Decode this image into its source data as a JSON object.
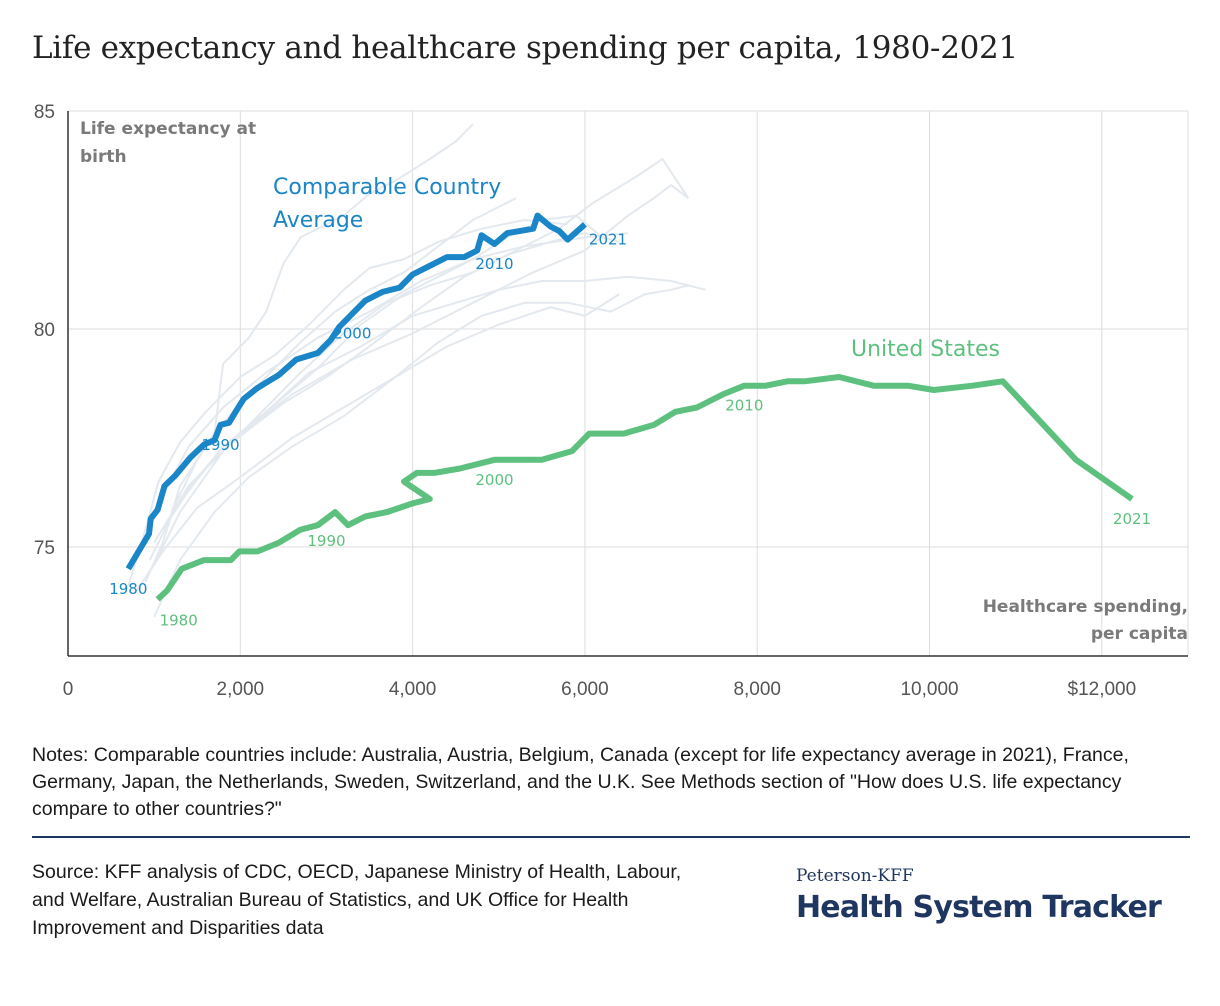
{
  "header": {
    "title": "Life expectancy and healthcare spending per capita, 1980-2021"
  },
  "colors": {
    "comparable": "#1a86c8",
    "us": "#5ec07f",
    "background_lines": "#e3e9ee",
    "grid": "#dddddd",
    "axis": "#333333",
    "axis_title": "#7a7a7a"
  },
  "chart_data": {
    "type": "line",
    "title": "Life expectancy and healthcare spending per capita, 1980-2021",
    "xlabel": "Healthcare spending, per capita",
    "ylabel": "Life expectancy at birth",
    "xlim": [
      0,
      13000
    ],
    "ylim": [
      72.5,
      85
    ],
    "x_ticks": [
      0,
      2000,
      4000,
      6000,
      8000,
      10000,
      12000
    ],
    "x_tick_labels": [
      "0",
      "2,000",
      "4,000",
      "6,000",
      "8,000",
      "10,000",
      "$12,000"
    ],
    "y_ticks": [
      75,
      80,
      85
    ],
    "y_tick_labels": [
      "75",
      "80",
      "85"
    ],
    "x_title_lines": [
      "Healthcare spending,",
      "per capita"
    ],
    "y_title_lines": [
      "Life expectancy at",
      "birth"
    ],
    "series": [
      {
        "name": "Comparable Country Average",
        "label_lines": [
          "Comparable Country",
          "Average"
        ],
        "color_key": "comparable",
        "points": [
          {
            "x": 700,
            "y": 74.5,
            "year": 1980
          },
          {
            "x": 820,
            "y": 74.9,
            "year": 1981
          },
          {
            "x": 940,
            "y": 75.3,
            "year": 1982
          },
          {
            "x": 960,
            "y": 75.65,
            "year": 1983
          },
          {
            "x": 1040,
            "y": 75.85,
            "year": 1984
          },
          {
            "x": 1120,
            "y": 76.4,
            "year": 1985
          },
          {
            "x": 1250,
            "y": 76.65,
            "year": 1986
          },
          {
            "x": 1420,
            "y": 77.05,
            "year": 1987
          },
          {
            "x": 1580,
            "y": 77.35,
            "year": 1988
          },
          {
            "x": 1700,
            "y": 77.45,
            "year": 1989
          },
          {
            "x": 1770,
            "y": 77.8,
            "year": 1990
          },
          {
            "x": 1870,
            "y": 77.85,
            "year": 1991
          },
          {
            "x": 1960,
            "y": 78.15,
            "year": 1992
          },
          {
            "x": 2040,
            "y": 78.4,
            "year": 1993
          },
          {
            "x": 2200,
            "y": 78.65,
            "year": 1994
          },
          {
            "x": 2450,
            "y": 78.95,
            "year": 1995
          },
          {
            "x": 2650,
            "y": 79.3,
            "year": 1996
          },
          {
            "x": 2900,
            "y": 79.45,
            "year": 1997
          },
          {
            "x": 3050,
            "y": 79.75,
            "year": 1998
          },
          {
            "x": 3150,
            "y": 80.05,
            "year": 1999
          },
          {
            "x": 3300,
            "y": 80.35,
            "year": 2000
          },
          {
            "x": 3450,
            "y": 80.65,
            "year": 2001
          },
          {
            "x": 3650,
            "y": 80.85,
            "year": 2002
          },
          {
            "x": 3850,
            "y": 80.95,
            "year": 2003
          },
          {
            "x": 4000,
            "y": 81.25,
            "year": 2004
          },
          {
            "x": 4200,
            "y": 81.45,
            "year": 2005
          },
          {
            "x": 4400,
            "y": 81.65,
            "year": 2006
          },
          {
            "x": 4600,
            "y": 81.65,
            "year": 2007
          },
          {
            "x": 4750,
            "y": 81.8,
            "year": 2008
          },
          {
            "x": 4800,
            "y": 82.15,
            "year": 2009
          },
          {
            "x": 4950,
            "y": 81.95,
            "year": 2010
          },
          {
            "x": 5100,
            "y": 82.2,
            "year": 2011
          },
          {
            "x": 5250,
            "y": 82.25,
            "year": 2012
          },
          {
            "x": 5400,
            "y": 82.3,
            "year": 2013
          },
          {
            "x": 5450,
            "y": 82.6,
            "year": 2014
          },
          {
            "x": 5600,
            "y": 82.35,
            "year": 2015
          },
          {
            "x": 5700,
            "y": 82.25,
            "year": 2016
          },
          {
            "x": 5800,
            "y": 82.05,
            "year": 2019
          },
          {
            "x": 6000,
            "y": 82.4,
            "year": 2021
          }
        ],
        "year_labels": [
          {
            "text": "1980",
            "x": 700,
            "y": 74.5,
            "anchor": "below"
          },
          {
            "text": "1990",
            "x": 1770,
            "y": 77.8,
            "anchor": "below"
          },
          {
            "text": "2000",
            "x": 3300,
            "y": 80.35,
            "anchor": "below"
          },
          {
            "text": "2010",
            "x": 4950,
            "y": 81.95,
            "anchor": "below"
          },
          {
            "text": "2021",
            "x": 6000,
            "y": 82.4,
            "anchor": "right"
          }
        ]
      },
      {
        "name": "United States",
        "label_lines": [
          "United States"
        ],
        "color_key": "us",
        "points": [
          {
            "x": 1040,
            "y": 73.8,
            "year": 1980
          },
          {
            "x": 1150,
            "y": 74.0,
            "year": 1981
          },
          {
            "x": 1320,
            "y": 74.5,
            "year": 1982
          },
          {
            "x": 1580,
            "y": 74.7,
            "year": 1983
          },
          {
            "x": 1890,
            "y": 74.7,
            "year": 1984
          },
          {
            "x": 1990,
            "y": 74.9,
            "year": 1985
          },
          {
            "x": 2200,
            "y": 74.9,
            "year": 1986
          },
          {
            "x": 2450,
            "y": 75.1,
            "year": 1987
          },
          {
            "x": 2700,
            "y": 75.4,
            "year": 1988
          },
          {
            "x": 2900,
            "y": 75.5,
            "year": 1989
          },
          {
            "x": 3100,
            "y": 75.8,
            "year": 1990
          },
          {
            "x": 3250,
            "y": 75.5,
            "year": 1991
          },
          {
            "x": 3450,
            "y": 75.7,
            "year": 1992
          },
          {
            "x": 3700,
            "y": 75.8,
            "year": 1993
          },
          {
            "x": 4000,
            "y": 76.0,
            "year": 1994
          },
          {
            "x": 4200,
            "y": 76.1,
            "year": 1995
          },
          {
            "x": 3900,
            "y": 76.5,
            "year": 1996
          },
          {
            "x": 4050,
            "y": 76.7,
            "year": 1997
          },
          {
            "x": 4250,
            "y": 76.7,
            "year": 1998
          },
          {
            "x": 4550,
            "y": 76.8,
            "year": 1999
          },
          {
            "x": 4950,
            "y": 77.0,
            "year": 2000
          },
          {
            "x": 5300,
            "y": 77.0,
            "year": 2001
          },
          {
            "x": 5500,
            "y": 77.0,
            "year": 2002
          },
          {
            "x": 5850,
            "y": 77.2,
            "year": 2003
          },
          {
            "x": 6050,
            "y": 77.6,
            "year": 2004
          },
          {
            "x": 6450,
            "y": 77.6,
            "year": 2005
          },
          {
            "x": 6800,
            "y": 77.8,
            "year": 2006
          },
          {
            "x": 7050,
            "y": 78.1,
            "year": 2007
          },
          {
            "x": 7300,
            "y": 78.2,
            "year": 2008
          },
          {
            "x": 7600,
            "y": 78.5,
            "year": 2009
          },
          {
            "x": 7850,
            "y": 78.7,
            "year": 2010
          },
          {
            "x": 8100,
            "y": 78.7,
            "year": 2011
          },
          {
            "x": 8350,
            "y": 78.8,
            "year": 2012
          },
          {
            "x": 8550,
            "y": 78.8,
            "year": 2013
          },
          {
            "x": 8950,
            "y": 78.9,
            "year": 2014
          },
          {
            "x": 9350,
            "y": 78.7,
            "year": 2015
          },
          {
            "x": 9750,
            "y": 78.7,
            "year": 2016
          },
          {
            "x": 10050,
            "y": 78.6,
            "year": 2017
          },
          {
            "x": 10500,
            "y": 78.7,
            "year": 2018
          },
          {
            "x": 10850,
            "y": 78.8,
            "year": 2019
          },
          {
            "x": 11700,
            "y": 77.0,
            "year": 2020
          },
          {
            "x": 12350,
            "y": 76.1,
            "year": 2021
          }
        ],
        "year_labels": [
          {
            "text": "1980",
            "x": 1040,
            "y": 73.8,
            "anchor": "below-right"
          },
          {
            "text": "1990",
            "x": 3000,
            "y": 75.6,
            "anchor": "below"
          },
          {
            "text": "2000",
            "x": 4950,
            "y": 77.0,
            "anchor": "below"
          },
          {
            "text": "2010",
            "x": 7850,
            "y": 78.7,
            "anchor": "below"
          },
          {
            "text": "2021",
            "x": 12350,
            "y": 76.1,
            "anchor": "below"
          }
        ]
      }
    ],
    "background_series": [
      [
        [
          900,
          74.2
        ],
        [
          1100,
          75.1
        ],
        [
          1300,
          76.4
        ],
        [
          1500,
          77.0
        ],
        [
          1700,
          77.6
        ],
        [
          2000,
          78.3
        ],
        [
          2300,
          78.9
        ],
        [
          2700,
          79.7
        ],
        [
          3100,
          80.4
        ],
        [
          3500,
          80.9
        ],
        [
          3900,
          81.3
        ],
        [
          4300,
          81.9
        ],
        [
          4700,
          82.5
        ],
        [
          5000,
          82.8
        ],
        [
          5200,
          83.0
        ]
      ],
      [
        [
          950,
          74.7
        ],
        [
          1250,
          75.9
        ],
        [
          1600,
          76.8
        ],
        [
          1950,
          77.5
        ],
        [
          2300,
          78.2
        ],
        [
          2700,
          79.0
        ],
        [
          3200,
          79.9
        ],
        [
          3700,
          80.6
        ],
        [
          4200,
          81.0
        ],
        [
          4700,
          81.3
        ],
        [
          5100,
          81.7
        ],
        [
          5600,
          82.0
        ],
        [
          6000,
          82.2
        ],
        [
          6400,
          82.0
        ]
      ],
      [
        [
          700,
          74.1
        ],
        [
          900,
          75.4
        ],
        [
          1050,
          76.5
        ],
        [
          1300,
          77.4
        ],
        [
          1600,
          78.1
        ],
        [
          2000,
          78.9
        ],
        [
          2400,
          79.4
        ],
        [
          2800,
          80.1
        ],
        [
          3200,
          80.9
        ],
        [
          3500,
          81.4
        ],
        [
          3900,
          81.6
        ],
        [
          4300,
          82.0
        ],
        [
          4800,
          82.3
        ],
        [
          5300,
          82.5
        ],
        [
          5800,
          82.4
        ]
      ],
      [
        [
          1200,
          75.8
        ],
        [
          1500,
          77.0
        ],
        [
          1700,
          77.6
        ],
        [
          1800,
          79.2
        ],
        [
          2100,
          79.8
        ],
        [
          2300,
          80.4
        ],
        [
          2500,
          81.5
        ],
        [
          2700,
          82.1
        ],
        [
          2900,
          82.3
        ],
        [
          3200,
          82.6
        ],
        [
          3500,
          83.1
        ],
        [
          3800,
          83.4
        ],
        [
          4200,
          83.9
        ],
        [
          4500,
          84.3
        ],
        [
          4700,
          84.7
        ]
      ],
      [
        [
          1000,
          73.4
        ],
        [
          1300,
          74.7
        ],
        [
          1700,
          75.8
        ],
        [
          2100,
          76.6
        ],
        [
          2600,
          77.3
        ],
        [
          3200,
          78.0
        ],
        [
          3800,
          78.9
        ],
        [
          4300,
          79.7
        ],
        [
          4800,
          80.3
        ],
        [
          5300,
          80.6
        ],
        [
          5800,
          80.6
        ],
        [
          6300,
          80.4
        ],
        [
          6700,
          80.8
        ],
        [
          7000,
          80.9
        ],
        [
          7200,
          81.0
        ]
      ],
      [
        [
          800,
          74.0
        ],
        [
          1100,
          74.9
        ],
        [
          1500,
          75.9
        ],
        [
          2000,
          76.6
        ],
        [
          2600,
          77.5
        ],
        [
          3200,
          78.2
        ],
        [
          3800,
          78.9
        ],
        [
          4400,
          79.6
        ],
        [
          5000,
          80.1
        ],
        [
          5600,
          80.5
        ],
        [
          6000,
          80.3
        ],
        [
          6400,
          80.8
        ]
      ],
      [
        [
          1000,
          74.6
        ],
        [
          1300,
          75.8
        ],
        [
          1800,
          77.2
        ],
        [
          2300,
          78.1
        ],
        [
          2800,
          79.0
        ],
        [
          3400,
          79.6
        ],
        [
          4000,
          80.3
        ],
        [
          4500,
          80.6
        ],
        [
          5000,
          80.9
        ],
        [
          5500,
          81.1
        ],
        [
          6000,
          81.1
        ],
        [
          6500,
          81.2
        ],
        [
          7000,
          81.1
        ],
        [
          7400,
          80.9
        ]
      ],
      [
        [
          850,
          74.9
        ],
        [
          1100,
          76.2
        ],
        [
          1400,
          77.3
        ],
        [
          1800,
          78.2
        ],
        [
          2300,
          79.0
        ],
        [
          2900,
          79.8
        ],
        [
          3500,
          80.4
        ],
        [
          4100,
          81.1
        ],
        [
          4700,
          81.6
        ],
        [
          5300,
          81.9
        ],
        [
          6000,
          82.1
        ],
        [
          6500,
          82.2
        ]
      ],
      [
        [
          1100,
          75.4
        ],
        [
          1500,
          76.6
        ],
        [
          2000,
          77.6
        ],
        [
          2600,
          78.5
        ],
        [
          3300,
          79.3
        ],
        [
          4000,
          79.9
        ],
        [
          4700,
          80.6
        ],
        [
          5400,
          81.3
        ],
        [
          6000,
          81.8
        ],
        [
          6500,
          82.6
        ],
        [
          6800,
          83.0
        ],
        [
          7000,
          83.3
        ],
        [
          7200,
          83.0
        ]
      ],
      [
        [
          1000,
          75.1
        ],
        [
          1400,
          76.4
        ],
        [
          1900,
          77.4
        ],
        [
          2500,
          78.3
        ],
        [
          3000,
          78.9
        ],
        [
          3500,
          79.6
        ],
        [
          4100,
          80.5
        ],
        [
          4600,
          81.2
        ],
        [
          5200,
          81.8
        ],
        [
          5700,
          82.3
        ],
        [
          6100,
          82.9
        ],
        [
          6600,
          83.5
        ],
        [
          6900,
          83.9
        ],
        [
          7200,
          83.0
        ]
      ],
      [
        [
          1300,
          76.1
        ],
        [
          1800,
          77.3
        ],
        [
          2300,
          78.1
        ],
        [
          2900,
          79.1
        ],
        [
          3400,
          80.1
        ],
        [
          3900,
          80.8
        ],
        [
          4300,
          81.2
        ],
        [
          4700,
          81.6
        ],
        [
          5100,
          82.1
        ],
        [
          5500,
          82.5
        ],
        [
          5900,
          82.6
        ],
        [
          6200,
          82.1
        ]
      ]
    ]
  },
  "notes": "Notes: Comparable countries include: Australia, Austria, Belgium, Canada (except for life expectancy average in 2021), France, Germany, Japan, the Netherlands, Sweden, Switzerland, and the U.K. See Methods section of \"How does U.S. life expectancy compare to other countries?\"",
  "source": "Source: KFF analysis of CDC, OECD, Japanese Ministry of Health, Labour, and Welfare, Australian Bureau of Statistics, and UK Office for Health Improvement and Disparities data",
  "brand": {
    "top": "Peterson-KFF",
    "main": "Health System Tracker"
  }
}
